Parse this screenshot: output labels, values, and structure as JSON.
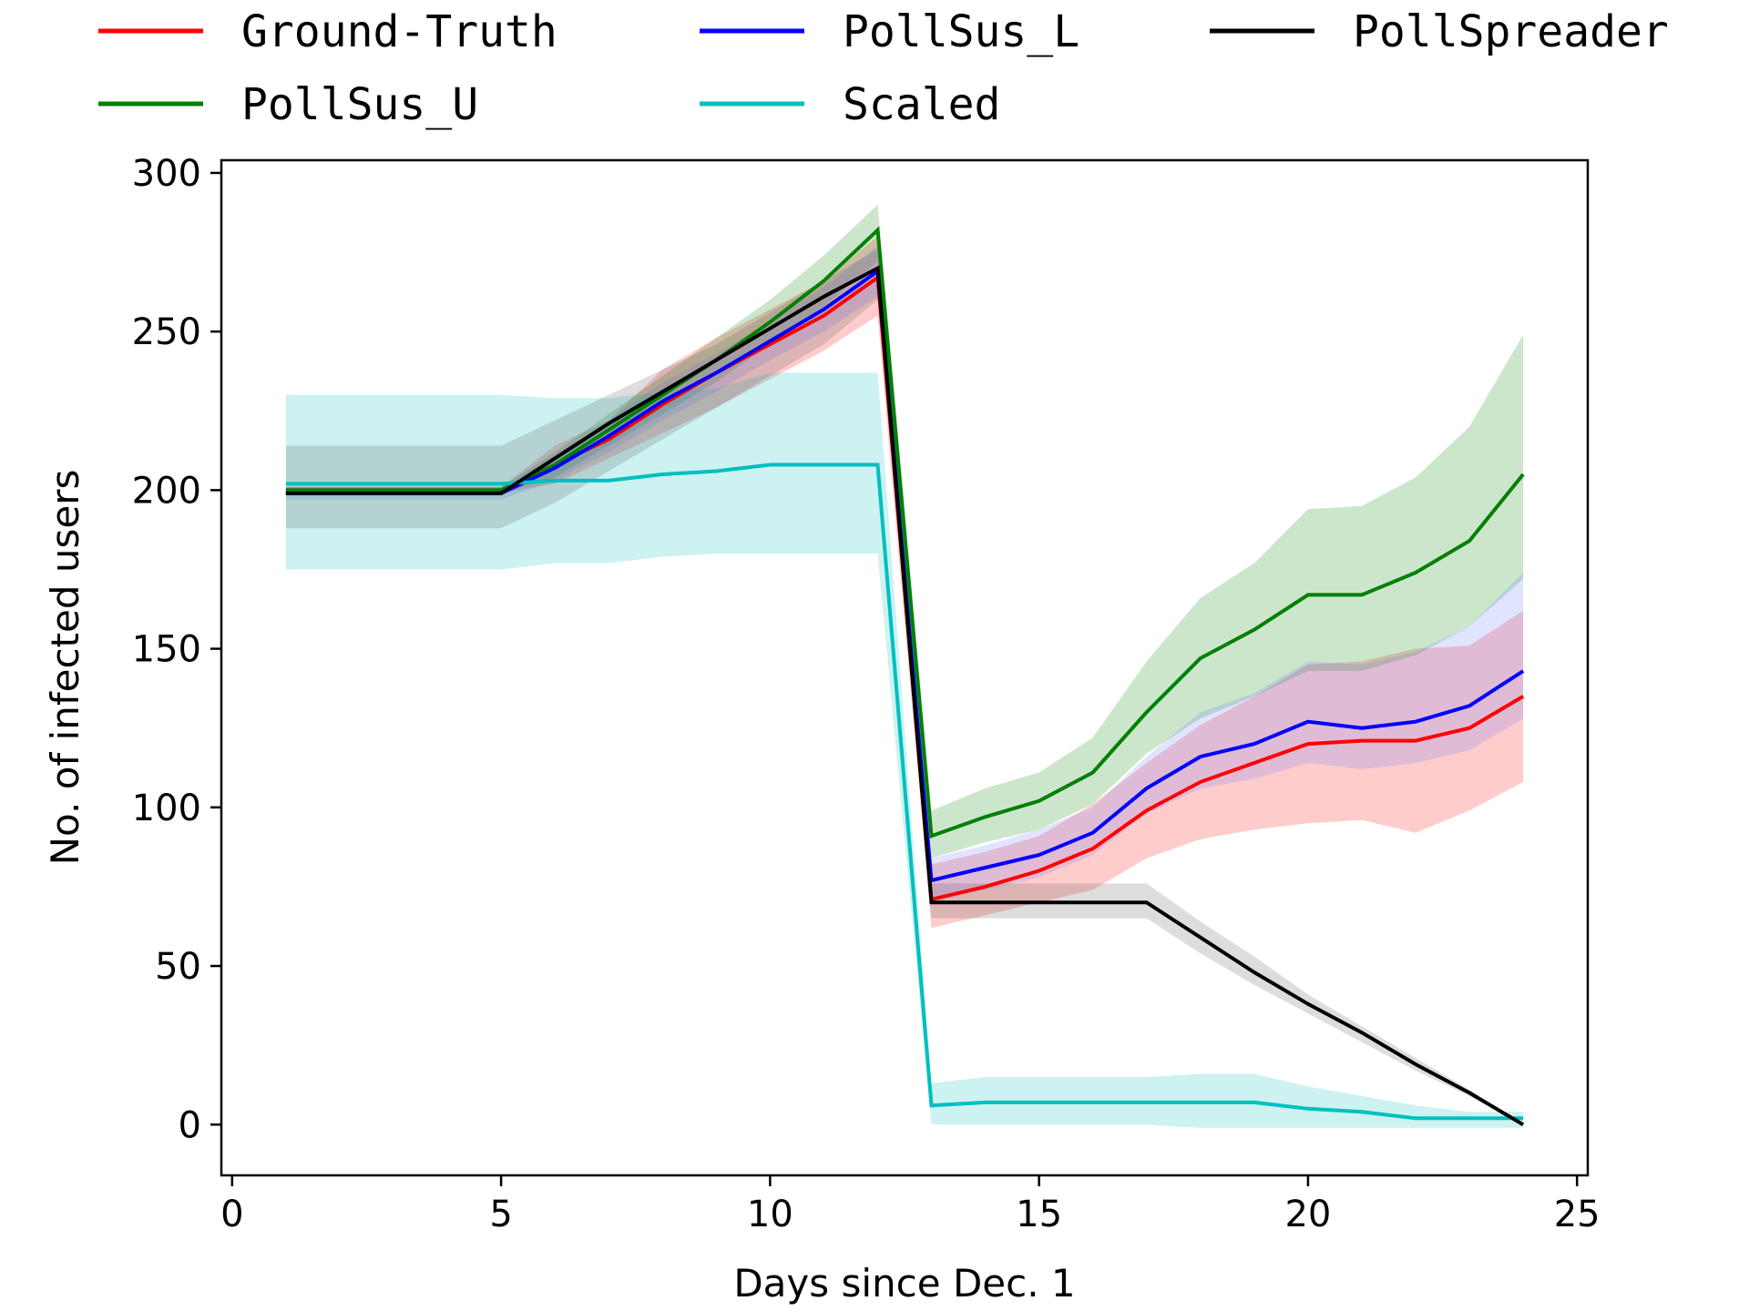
{
  "chart_data": {
    "type": "line",
    "title": "",
    "xlabel": "Days since Dec. 1",
    "ylabel": "No. of infected users",
    "xlim": [
      -0.2,
      25.2
    ],
    "ylim": [
      -16,
      304
    ],
    "xticks": [
      0,
      5,
      10,
      15,
      20,
      25
    ],
    "yticks": [
      0,
      50,
      100,
      150,
      200,
      250,
      300
    ],
    "xtick_labels": [
      "0",
      "5",
      "10",
      "15",
      "20",
      "25"
    ],
    "ytick_labels": [
      "0",
      "50",
      "100",
      "150",
      "200",
      "250",
      "300"
    ],
    "grid": false,
    "legend_position": "top",
    "x": [
      1,
      2,
      3,
      4,
      5,
      6,
      7,
      8,
      9,
      10,
      11,
      12,
      13,
      14,
      15,
      16,
      17,
      18,
      19,
      20,
      21,
      22,
      23,
      24
    ],
    "series": [
      {
        "name": "Ground-Truth",
        "color": "#ff0000",
        "band_color": "#ff0000",
        "values": [
          200,
          200,
          200,
          200,
          200,
          208,
          216,
          227,
          237,
          246,
          255,
          267,
          71,
          75,
          80,
          87,
          99,
          108,
          114,
          120,
          121,
          121,
          125,
          135
        ],
        "lower": [
          199,
          199,
          199,
          199,
          199,
          202,
          210,
          218,
          226,
          235,
          244,
          255,
          62,
          66,
          70,
          74,
          84,
          90,
          93,
          95,
          96,
          92,
          99,
          108
        ],
        "upper": [
          201,
          201,
          201,
          201,
          201,
          214,
          222,
          238,
          248,
          257,
          266,
          280,
          82,
          86,
          91,
          101,
          114,
          126,
          135,
          145,
          146,
          150,
          151,
          162
        ]
      },
      {
        "name": "PollSus_U",
        "color": "#008000",
        "band_color": "#008000",
        "values": [
          200,
          200,
          200,
          200,
          200,
          208,
          219,
          230,
          241,
          253,
          266,
          282,
          91,
          97,
          102,
          111,
          130,
          147,
          156,
          167,
          167,
          174,
          184,
          205
        ],
        "lower": [
          199,
          199,
          199,
          199,
          199,
          204,
          214,
          224,
          234,
          246,
          258,
          272,
          84,
          89,
          93,
          101,
          117,
          128,
          135,
          143,
          143,
          148,
          157,
          172
        ],
        "upper": [
          201,
          201,
          201,
          201,
          201,
          212,
          224,
          236,
          248,
          260,
          274,
          290,
          99,
          106,
          111,
          122,
          146,
          166,
          177,
          194,
          195,
          204,
          220,
          249
        ]
      },
      {
        "name": "PollSus_L",
        "color": "#0000ff",
        "band_color": "#6677ff",
        "values": [
          199,
          199,
          199,
          199,
          199,
          207,
          217,
          228,
          237,
          247,
          257,
          269,
          77,
          81,
          85,
          92,
          106,
          116,
          120,
          127,
          125,
          127,
          132,
          143
        ],
        "lower": [
          197,
          197,
          197,
          197,
          197,
          203,
          212,
          222,
          231,
          241,
          250,
          261,
          70,
          74,
          78,
          85,
          98,
          106,
          109,
          114,
          112,
          114,
          118,
          128
        ],
        "upper": [
          201,
          201,
          201,
          201,
          201,
          211,
          222,
          234,
          243,
          253,
          264,
          277,
          84,
          88,
          93,
          100,
          116,
          130,
          136,
          146,
          145,
          149,
          157,
          174
        ]
      },
      {
        "name": "Scaled",
        "color": "#00bfbf",
        "band_color": "#00bfbf",
        "values": [
          202,
          202,
          202,
          202,
          202,
          203,
          203,
          205,
          206,
          208,
          208,
          208,
          6,
          7,
          7,
          7,
          7,
          7,
          7,
          5,
          4,
          2,
          2,
          2
        ],
        "lower": [
          175,
          175,
          175,
          175,
          175,
          177,
          177,
          179,
          180,
          180,
          180,
          180,
          0,
          0,
          0,
          0,
          0,
          -1,
          -1,
          -1,
          -1,
          -1,
          -1,
          -1
        ],
        "upper": [
          230,
          230,
          230,
          230,
          230,
          229,
          229,
          231,
          232,
          237,
          237,
          237,
          13,
          15,
          15,
          15,
          15,
          16,
          16,
          12,
          9,
          6,
          4,
          4
        ]
      },
      {
        "name": "PollSpreader",
        "color": "#000000",
        "band_color": "#555555",
        "values": [
          199,
          199,
          199,
          199,
          199,
          210,
          221,
          231,
          241,
          251,
          261,
          270,
          70,
          70,
          70,
          70,
          70,
          59,
          48,
          38,
          29,
          19,
          10,
          0
        ],
        "lower": [
          188,
          188,
          188,
          188,
          188,
          196,
          206,
          216,
          226,
          236,
          246,
          260,
          65,
          65,
          65,
          65,
          65,
          54,
          44,
          35,
          26,
          17,
          9,
          0
        ],
        "upper": [
          214,
          214,
          214,
          214,
          214,
          222,
          230,
          238,
          246,
          256,
          266,
          276,
          76,
          76,
          76,
          76,
          76,
          64,
          53,
          41,
          31,
          21,
          11,
          0
        ]
      }
    ]
  }
}
